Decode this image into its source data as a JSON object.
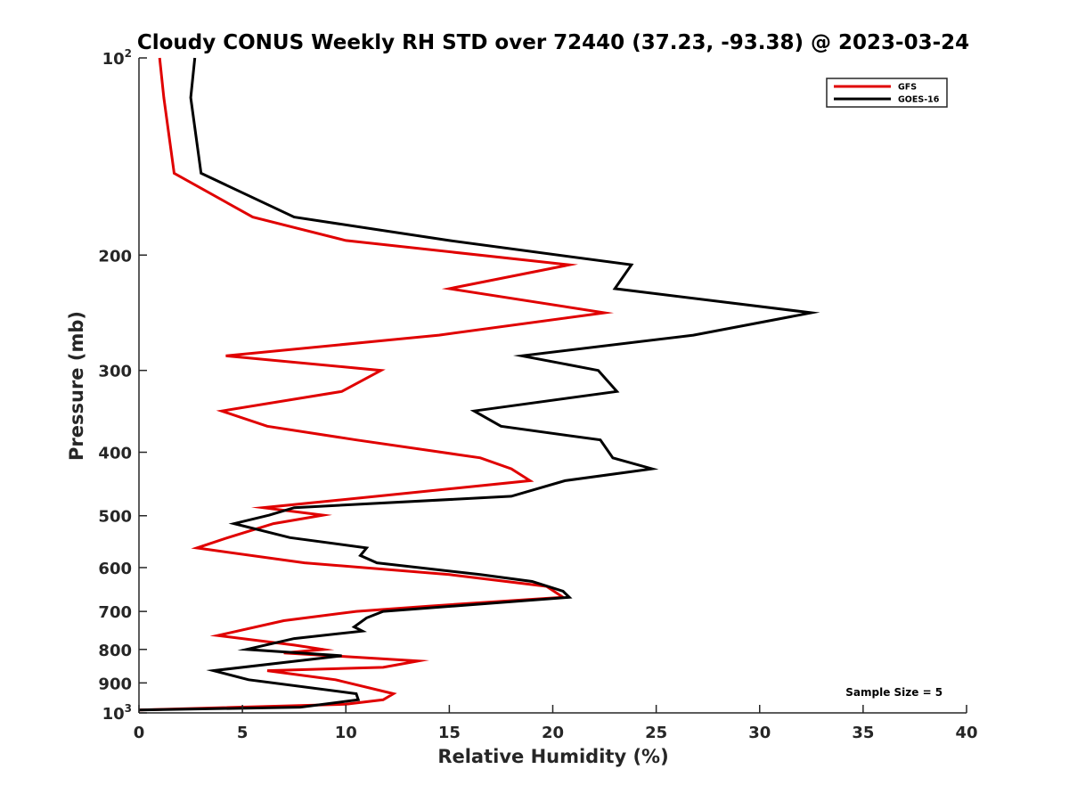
{
  "chart_data": {
    "type": "line",
    "title": "Cloudy CONUS Weekly RH STD over 72440 (37.23, -93.38) @ 2023-03-24",
    "xlabel": "Relative Humidity (%)",
    "ylabel": "Pressure (mb)",
    "xlim": [
      0,
      40
    ],
    "ylim": [
      100,
      1000
    ],
    "y_scale": "log",
    "y_reversed": true,
    "grid": false,
    "legend_position": "top-right",
    "x_ticks": [
      0,
      5,
      10,
      15,
      20,
      25,
      30,
      35,
      40
    ],
    "x_tick_labels": [
      "0",
      "5",
      "10",
      "15",
      "20",
      "25",
      "30",
      "35",
      "40"
    ],
    "y_ticks": [
      {
        "value": 100,
        "base": "10",
        "exp": "2"
      },
      {
        "value": 200,
        "label": "200"
      },
      {
        "value": 300,
        "label": "300"
      },
      {
        "value": 400,
        "label": "400"
      },
      {
        "value": 500,
        "label": "500"
      },
      {
        "value": 600,
        "label": "600"
      },
      {
        "value": 700,
        "label": "700"
      },
      {
        "value": 800,
        "label": "800"
      },
      {
        "value": 900,
        "label": "900"
      },
      {
        "value": 1000,
        "base": "10",
        "exp": "3"
      }
    ],
    "series": [
      {
        "name": "GFS",
        "color": "#e00000",
        "points": [
          [
            1.0,
            100
          ],
          [
            1.2,
            115
          ],
          [
            1.7,
            150
          ],
          [
            5.5,
            175
          ],
          [
            10.0,
            190
          ],
          [
            20.8,
            207
          ],
          [
            15.0,
            225
          ],
          [
            22.5,
            245
          ],
          [
            14.5,
            265
          ],
          [
            4.2,
            285
          ],
          [
            11.7,
            300
          ],
          [
            9.8,
            323
          ],
          [
            4.0,
            346
          ],
          [
            6.2,
            365
          ],
          [
            10.5,
            383
          ],
          [
            16.5,
            408
          ],
          [
            18.0,
            424
          ],
          [
            18.9,
            442
          ],
          [
            11.5,
            467
          ],
          [
            6.0,
            486
          ],
          [
            8.9,
            499
          ],
          [
            6.5,
            514
          ],
          [
            4.3,
            540
          ],
          [
            2.8,
            560
          ],
          [
            8.0,
            590
          ],
          [
            15.0,
            615
          ],
          [
            19.7,
            641
          ],
          [
            20.5,
            666
          ],
          [
            14.0,
            687
          ],
          [
            10.5,
            700
          ],
          [
            7.0,
            723
          ],
          [
            3.8,
            762
          ],
          [
            7.5,
            788
          ],
          [
            8.9,
            800
          ],
          [
            7.0,
            810
          ],
          [
            13.5,
            833
          ],
          [
            11.8,
            852
          ],
          [
            6.2,
            862
          ],
          [
            9.5,
            890
          ],
          [
            12.3,
            935
          ],
          [
            11.8,
            955
          ],
          [
            10.0,
            970
          ],
          [
            0.0,
            990
          ]
        ]
      },
      {
        "name": "GOES-16",
        "color": "#000000",
        "points": [
          [
            2.7,
            100
          ],
          [
            2.5,
            115
          ],
          [
            3.0,
            150
          ],
          [
            7.5,
            175
          ],
          [
            15.0,
            190
          ],
          [
            23.8,
            207
          ],
          [
            23.0,
            225
          ],
          [
            32.5,
            245
          ],
          [
            26.8,
            265
          ],
          [
            18.5,
            285
          ],
          [
            22.2,
            300
          ],
          [
            23.1,
            323
          ],
          [
            16.2,
            346
          ],
          [
            17.5,
            365
          ],
          [
            22.3,
            383
          ],
          [
            22.9,
            408
          ],
          [
            24.8,
            424
          ],
          [
            20.6,
            442
          ],
          [
            18.0,
            467
          ],
          [
            7.5,
            486
          ],
          [
            6.3,
            499
          ],
          [
            4.6,
            514
          ],
          [
            7.3,
            540
          ],
          [
            11.0,
            560
          ],
          [
            10.7,
            575
          ],
          [
            11.5,
            590
          ],
          [
            16.5,
            615
          ],
          [
            19.0,
            630
          ],
          [
            20.5,
            652
          ],
          [
            20.8,
            666
          ],
          [
            11.8,
            700
          ],
          [
            11.0,
            716
          ],
          [
            10.4,
            739
          ],
          [
            10.8,
            750
          ],
          [
            7.5,
            770
          ],
          [
            5.2,
            800
          ],
          [
            9.8,
            818
          ],
          [
            3.6,
            862
          ],
          [
            5.3,
            890
          ],
          [
            10.5,
            935
          ],
          [
            10.6,
            955
          ],
          [
            7.8,
            980
          ],
          [
            0.0,
            990
          ]
        ]
      }
    ],
    "annotations": [
      {
        "text": "Sample Size = 5",
        "x": 36.5,
        "y": 930
      }
    ]
  }
}
